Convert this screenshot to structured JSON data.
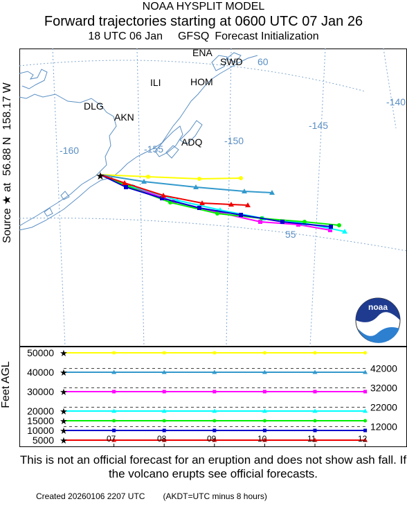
{
  "header": {
    "line1": "NOAA HYSPLIT MODEL",
    "line2": "Forward trajectories starting at 0600 UTC 07 Jan 26",
    "run": "18 UTC 06 Jan",
    "model": "GFSQ",
    "init": "Forecast Initialization"
  },
  "source": {
    "label": "Source ★ at",
    "lat": "56.88 N",
    "lon": "158.17 W"
  },
  "map": {
    "places": [
      {
        "name": "ENA"
      },
      {
        "name": "SWD"
      },
      {
        "name": "ILI"
      },
      {
        "name": "HOM"
      },
      {
        "name": "DLG"
      },
      {
        "name": "AKN"
      },
      {
        "name": "ADQ"
      }
    ],
    "lon_labels": [
      "-160",
      "-155",
      "-150",
      "-145",
      "-140",
      "60"
    ],
    "lat_labels": [
      "55"
    ],
    "coast_color": "#5b8fc3",
    "grid_color": "#7fa6cf"
  },
  "logo": {
    "text": "noaa"
  },
  "altitude": {
    "axis_label": "Feet AGL",
    "left_ticks": [
      "50000",
      "40000",
      "30000",
      "20000",
      "15000",
      "10000",
      "5000"
    ],
    "right_ticks": [
      "42000",
      "32000",
      "22000",
      "12000"
    ],
    "time_ticks": [
      "07",
      "08",
      "09",
      "10",
      "11",
      "12"
    ]
  },
  "trajectories": [
    {
      "color": "#ffff00",
      "marker": "circle",
      "altitude_ft": 50000
    },
    {
      "color": "#3399cc",
      "marker": "triangle",
      "altitude_ft": 40000
    },
    {
      "color": "#ff00ff",
      "marker": "square",
      "altitude_ft": 30000
    },
    {
      "color": "#00ffff",
      "marker": "triangle",
      "altitude_ft": 20000
    },
    {
      "color": "#00ee00",
      "marker": "circle",
      "altitude_ft": 15000
    },
    {
      "color": "#0000cc",
      "marker": "square",
      "altitude_ft": 10000
    },
    {
      "color": "#ee0000",
      "marker": "triangle",
      "altitude_ft": 5000
    }
  ],
  "disclaimer": "This is not an official forecast for an eruption and does not show ash fall. If the volcano erupts see official forecasts.",
  "footer": {
    "created": "Created 20260106 2207 UTC",
    "note": "(AKDT=UTC minus 8 hours)"
  }
}
